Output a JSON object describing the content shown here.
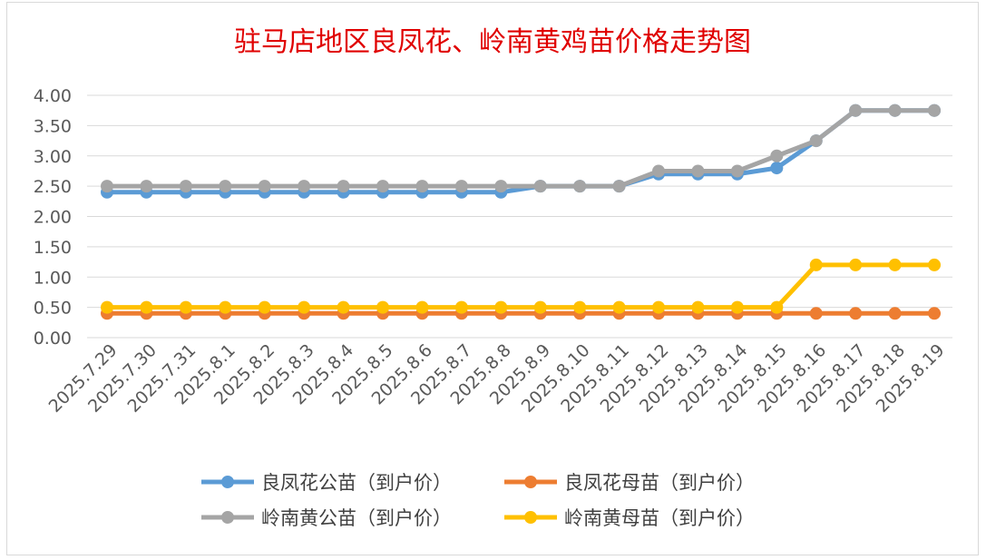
{
  "chart_data": {
    "type": "line",
    "title": "驻马店地区良凤花、岭南黄鸡苗价格走势图",
    "xlabel": "",
    "ylabel": "",
    "categories": [
      "2025.7.29",
      "2025.7.30",
      "2025.7.31",
      "2025.8.1",
      "2025.8.2",
      "2025.8.3",
      "2025.8.4",
      "2025.8.5",
      "2025.8.6",
      "2025.8.7",
      "2025.8.8",
      "2025.8.9",
      "2025.8.10",
      "2025.8.11",
      "2025.8.12",
      "2025.8.13",
      "2025.8.14",
      "2025.8.15",
      "2025.8.16",
      "2025.8.17",
      "2025.8.18",
      "2025.8.19"
    ],
    "y_ticks": [
      "0.00",
      "0.50",
      "1.00",
      "1.50",
      "2.00",
      "2.50",
      "3.00",
      "3.50",
      "4.00"
    ],
    "ylim": [
      0,
      4
    ],
    "grid": true,
    "legend_position": "bottom",
    "series": [
      {
        "name": "良凤花公苗（到户价）",
        "color": "#5b9bd5",
        "values": [
          2.4,
          2.4,
          2.4,
          2.4,
          2.4,
          2.4,
          2.4,
          2.4,
          2.4,
          2.4,
          2.4,
          2.5,
          2.5,
          2.5,
          2.7,
          2.7,
          2.7,
          2.8,
          3.25,
          3.75,
          3.75,
          3.75
        ]
      },
      {
        "name": "良凤花母苗（到户价）",
        "color": "#ed7d31",
        "values": [
          0.4,
          0.4,
          0.4,
          0.4,
          0.4,
          0.4,
          0.4,
          0.4,
          0.4,
          0.4,
          0.4,
          0.4,
          0.4,
          0.4,
          0.4,
          0.4,
          0.4,
          0.4,
          0.4,
          0.4,
          0.4,
          0.4
        ]
      },
      {
        "name": "岭南黄公苗（到户价）",
        "color": "#a5a5a5",
        "values": [
          2.5,
          2.5,
          2.5,
          2.5,
          2.5,
          2.5,
          2.5,
          2.5,
          2.5,
          2.5,
          2.5,
          2.5,
          2.5,
          2.5,
          2.75,
          2.75,
          2.75,
          3.0,
          3.25,
          3.75,
          3.75,
          3.75
        ]
      },
      {
        "name": "岭南黄母苗（到户价）",
        "color": "#ffc000",
        "values": [
          0.5,
          0.5,
          0.5,
          0.5,
          0.5,
          0.5,
          0.5,
          0.5,
          0.5,
          0.5,
          0.5,
          0.5,
          0.5,
          0.5,
          0.5,
          0.5,
          0.5,
          0.5,
          1.2,
          1.2,
          1.2,
          1.2
        ]
      }
    ]
  }
}
